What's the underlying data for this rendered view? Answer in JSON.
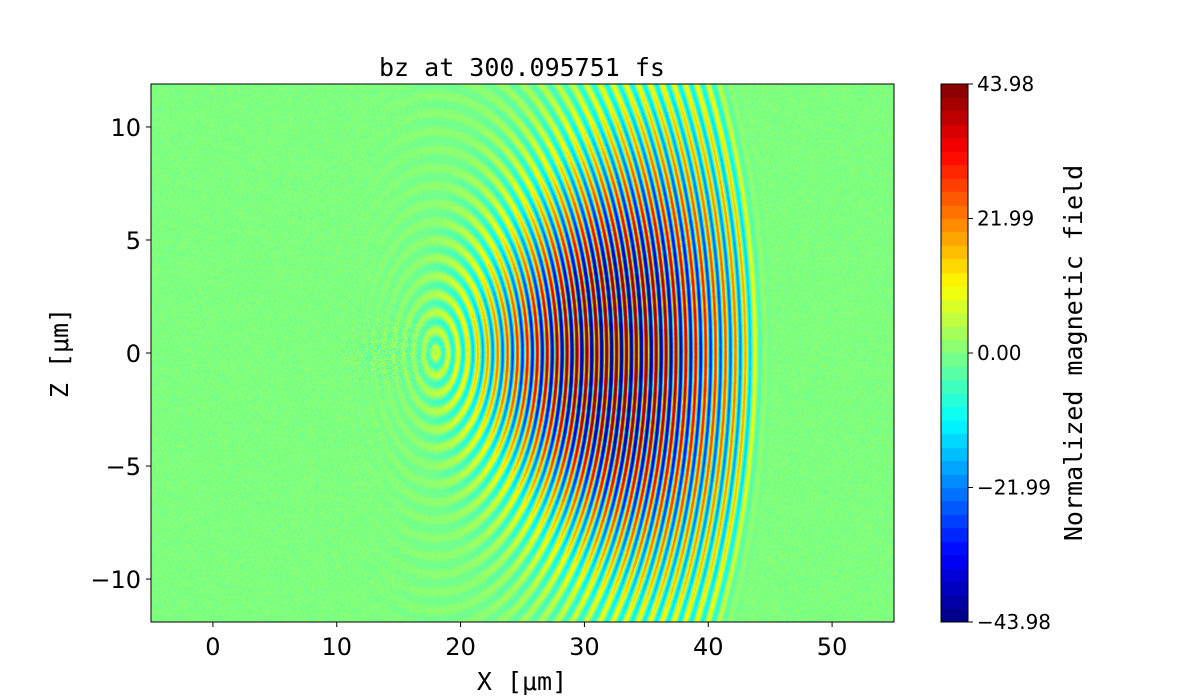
{
  "chart_data": {
    "type": "heatmap",
    "title": "bz at 300.095751 fs",
    "xlabel": "X [$\\mu m$]",
    "xlabel_display": "X [μm]",
    "ylabel_display": "Z [μm]",
    "xlim": [
      -5,
      55
    ],
    "ylim": [
      -11.9,
      11.9
    ],
    "xticks": [
      0,
      10,
      20,
      30,
      40,
      50
    ],
    "xtick_labels": [
      "0",
      "10",
      "20",
      "30",
      "40",
      "50"
    ],
    "yticks": [
      -10,
      -5,
      0,
      5,
      10
    ],
    "ytick_labels": [
      "−10",
      "−5",
      "0",
      "5",
      "10"
    ],
    "colormap": "jet",
    "color_levels": 40,
    "colorbar": {
      "label": "Normalized magnetic field",
      "range": [
        -43.98,
        43.98
      ],
      "ticks": [
        -43.98,
        -21.99,
        0.0,
        21.99,
        43.98
      ],
      "tick_labels": [
        "−43.98",
        "−21.99",
        "0.00",
        "21.99",
        "43.98"
      ]
    },
    "field_description": {
      "pulse_front_x": 44,
      "peak_x": 32,
      "peak_value": 43.98,
      "wavelength_um": 0.8,
      "grid": false
    }
  }
}
